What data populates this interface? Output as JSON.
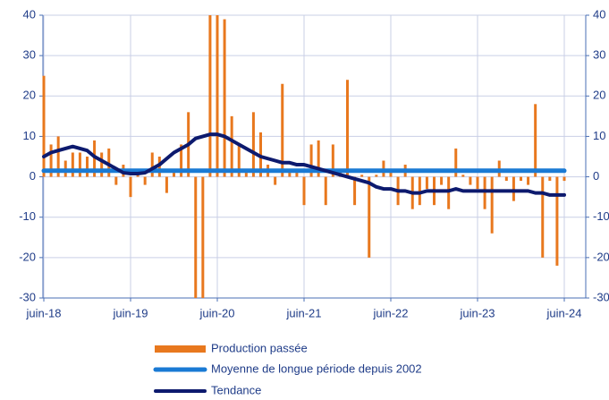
{
  "chart_data": {
    "type": "bar_line",
    "categories": [
      "juin-18",
      null,
      null,
      null,
      null,
      null,
      null,
      null,
      null,
      null,
      null,
      null,
      "juin-19",
      null,
      null,
      null,
      null,
      null,
      null,
      null,
      null,
      null,
      null,
      null,
      "juin-20",
      null,
      null,
      null,
      null,
      null,
      null,
      null,
      null,
      null,
      null,
      null,
      "juin-21",
      null,
      null,
      null,
      null,
      null,
      null,
      null,
      null,
      null,
      null,
      null,
      "juin-22",
      null,
      null,
      null,
      null,
      null,
      null,
      null,
      null,
      null,
      null,
      null,
      "juin-23",
      null,
      null,
      null,
      null,
      null,
      null,
      null,
      null,
      null,
      null,
      null,
      "juin-24"
    ],
    "series": [
      {
        "name": "Production passée",
        "kind": "bar",
        "color": "#e8781e",
        "values": [
          25,
          8,
          10,
          4,
          6,
          6,
          5,
          9,
          6,
          7,
          -2,
          3,
          -5,
          1,
          -2,
          6,
          5,
          -4,
          1,
          8,
          16,
          -30,
          -30,
          40,
          40,
          39,
          15,
          8,
          1,
          16,
          11,
          3,
          -2,
          23,
          1,
          1,
          -7,
          8,
          9,
          -7,
          8,
          1,
          24,
          -7,
          0.5,
          -20,
          0.5,
          4,
          1,
          -7,
          3,
          -8,
          -7,
          -3,
          -7,
          -2,
          -8,
          7,
          0.5,
          -2,
          -3,
          -8,
          -14,
          4,
          -1,
          -6,
          -1,
          -2,
          18,
          -20,
          -1,
          -22,
          -1
        ]
      },
      {
        "name": "Moyenne de longue période depuis 2002",
        "kind": "line",
        "color": "#1a7ad4",
        "values": [
          1.5,
          1.5,
          1.5,
          1.5,
          1.5,
          1.5,
          1.5,
          1.5,
          1.5,
          1.5,
          1.5,
          1.5,
          1.5,
          1.5,
          1.5,
          1.5,
          1.5,
          1.5,
          1.5,
          1.5,
          1.5,
          1.5,
          1.5,
          1.5,
          1.5,
          1.5,
          1.5,
          1.5,
          1.5,
          1.5,
          1.5,
          1.5,
          1.5,
          1.5,
          1.5,
          1.5,
          1.5,
          1.5,
          1.5,
          1.5,
          1.5,
          1.5,
          1.5,
          1.5,
          1.5,
          1.5,
          1.5,
          1.5,
          1.5,
          1.5,
          1.5,
          1.5,
          1.5,
          1.5,
          1.5,
          1.5,
          1.5,
          1.5,
          1.5,
          1.5,
          1.5,
          1.5,
          1.5,
          1.5,
          1.5,
          1.5,
          1.5,
          1.5,
          1.5,
          1.5,
          1.5,
          1.5,
          1.5
        ]
      },
      {
        "name": "Tendance",
        "kind": "line",
        "color": "#0d1a6e",
        "values": [
          5,
          6,
          6.5,
          7,
          7.5,
          7,
          6.5,
          5,
          4,
          3,
          2,
          1,
          0.8,
          0.8,
          1,
          2,
          3,
          4.5,
          6,
          7,
          8,
          9.5,
          10,
          10.5,
          10.5,
          10,
          9,
          8,
          7,
          6,
          5,
          4.5,
          4,
          3.5,
          3.5,
          3,
          3,
          2.5,
          2,
          1.5,
          1,
          0.5,
          0,
          -0.5,
          -1,
          -1.5,
          -2.5,
          -3,
          -3,
          -3.5,
          -3.5,
          -4,
          -4,
          -3.5,
          -3.5,
          -3.5,
          -3.5,
          -3,
          -3.5,
          -3.5,
          -3.5,
          -3.5,
          -3.5,
          -3.5,
          -3.5,
          -3.5,
          -3.5,
          -3.5,
          -4,
          -4,
          -4.5,
          -4.5,
          -4.5
        ]
      }
    ],
    "ylim": [
      -30,
      40
    ],
    "yticks": [
      -30,
      -20,
      -10,
      0,
      10,
      20,
      30,
      40
    ],
    "y2lim": [
      -30,
      40
    ],
    "y2ticks": [
      -30,
      -20,
      -10,
      0,
      10,
      20,
      30,
      40
    ],
    "grid": true,
    "legend": "bottom"
  }
}
